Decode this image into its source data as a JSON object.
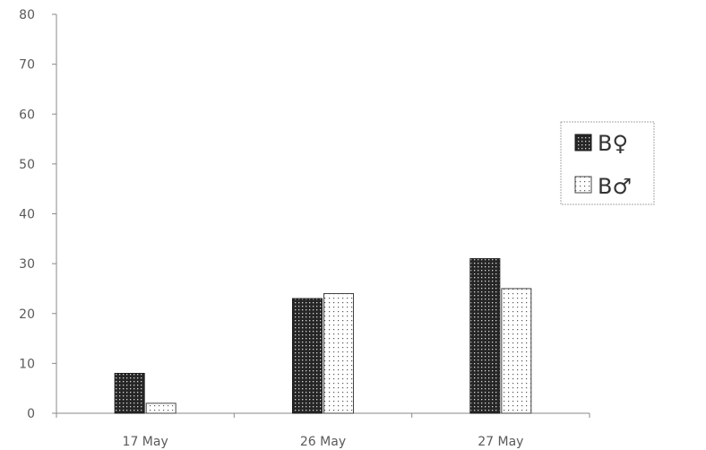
{
  "chart_data": {
    "type": "bar",
    "title": "",
    "xlabel": "",
    "ylabel": "",
    "categories": [
      "17 May",
      "26 May",
      "27 May"
    ],
    "ylim": [
      0,
      80
    ],
    "yticks": [
      0,
      10,
      20,
      30,
      40,
      50,
      60,
      70,
      80
    ],
    "grid": false,
    "legend_position": "right",
    "series": [
      {
        "name": "B♀",
        "values": [
          8,
          23,
          31
        ],
        "pattern": "dense-dots-dark",
        "color": "#2b2b2b"
      },
      {
        "name": "B♂",
        "values": [
          2,
          24,
          25
        ],
        "pattern": "sparse-dots-light",
        "color": "#ffffff"
      }
    ]
  }
}
